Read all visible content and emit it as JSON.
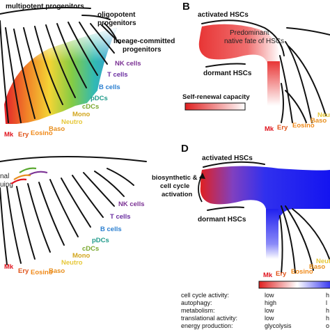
{
  "colors": {
    "red": "#e0141e",
    "ery_orange": "#e0541a",
    "eosino_orange": "#f08a1a",
    "yellow": "#f3d22a",
    "green": "#7ec93a",
    "teal": "#27b6b0",
    "blue": "#2b8fd6",
    "nk_purple": "#7b3294",
    "tcell_purple": "#6a2ea0",
    "bcell_blue": "#2b7fd0",
    "pdc_teal": "#1f9a8a",
    "cdc_green": "#7aa82e",
    "mono_yellow": "#d2a61e",
    "neutro_yellow": "#e6c83a",
    "baso_orange": "#e89020",
    "hsc_red": "#e84040",
    "hsc_blue": "#1a1aee"
  },
  "panel_a": {
    "labels": {
      "multipotent": "multipotent progenitors",
      "oligopotent_1": "oligopotent",
      "oligopotent_2": "progenitors",
      "lineage_1": "lineage-committed",
      "lineage_2": "progenitors"
    },
    "cell_types": [
      "NK cells",
      "T cells",
      "B cells",
      "pDCs",
      "cDCs",
      "Mono",
      "Neutro",
      "Baso",
      "Eosino",
      "Ery",
      "Mk"
    ]
  },
  "panel_b": {
    "letter": "B",
    "activated": "activated HSCs",
    "dormant": "dormant HSCs",
    "fate_1": "Predominant",
    "fate_2": "native fate of HSCs",
    "self_renewal": "Self-renewal capacity",
    "cell_types": [
      "Mk",
      "Ery",
      "Eosino",
      "Baso",
      "Neutro"
    ]
  },
  "panel_c": {
    "partial_1": "nal",
    "partial_2": "uing",
    "cell_types": [
      "NK cells",
      "T cells",
      "B cells",
      "pDCs",
      "cDCs",
      "Mono",
      "Neutro",
      "Baso",
      "Eosino",
      "Ery",
      "Mk"
    ]
  },
  "panel_d": {
    "letter": "D",
    "activated": "activated HSCs",
    "dormant": "dormant HSCs",
    "activation_1": "biosynthetic &",
    "activation_2": "cell cycle",
    "activation_3": "activation",
    "cell_types": [
      "Mk",
      "Ery",
      "Eosino",
      "Baso",
      "Neutro"
    ],
    "table": [
      {
        "property": "cell cycle activity:",
        "dormant": "low",
        "activated": "h"
      },
      {
        "property": "autophagy:",
        "dormant": "high",
        "activated": "l"
      },
      {
        "property": "metabolism:",
        "dormant": "low",
        "activated": "h"
      },
      {
        "property": "translational activity:",
        "dormant": "low",
        "activated": "h"
      },
      {
        "property": "energy production:",
        "dormant": "glycolysis",
        "activated": "o"
      }
    ]
  }
}
